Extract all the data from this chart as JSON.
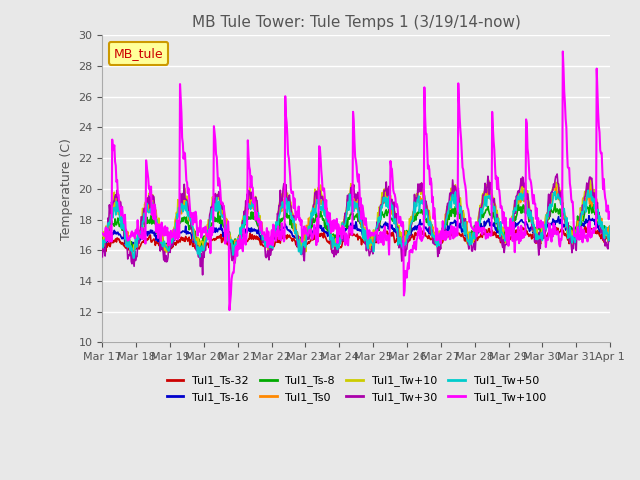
{
  "title": "MB Tule Tower: Tule Temps 1 (3/19/14-now)",
  "ylabel": "Temperature (C)",
  "ylim": [
    10,
    30
  ],
  "yticks": [
    10,
    12,
    14,
    16,
    18,
    20,
    22,
    24,
    26,
    28,
    30
  ],
  "plot_bg": "#e8e8e8",
  "legend_label": "MB_tule",
  "legend_box_color": "#ffff99",
  "legend_box_edge": "#cc9900",
  "series": [
    {
      "label": "Tul1_Ts-32",
      "color": "#cc0000",
      "lw": 1.2
    },
    {
      "label": "Tul1_Ts-16",
      "color": "#0000cc",
      "lw": 1.2
    },
    {
      "label": "Tul1_Ts-8",
      "color": "#00aa00",
      "lw": 1.2
    },
    {
      "label": "Tul1_Ts0",
      "color": "#ff8800",
      "lw": 1.2
    },
    {
      "label": "Tul1_Tw+10",
      "color": "#cccc00",
      "lw": 1.2
    },
    {
      "label": "Tul1_Tw+30",
      "color": "#aa00aa",
      "lw": 1.2
    },
    {
      "label": "Tul1_Tw+50",
      "color": "#00cccc",
      "lw": 1.2
    },
    {
      "label": "Tul1_Tw+100",
      "color": "#ff00ff",
      "lw": 1.5
    }
  ],
  "x_tick_positions": [
    0,
    1,
    2,
    3,
    4,
    5,
    6,
    7,
    8,
    9,
    10,
    11,
    12,
    13,
    14,
    15
  ],
  "x_tick_labels": [
    "Mar 17",
    "Mar 18",
    "Mar 19",
    "Mar 20",
    "Mar 21",
    "Mar 22",
    "Mar 23",
    "Mar 24",
    "Mar 25",
    "Mar 26",
    "Mar 27",
    "Mar 28",
    "Mar 29",
    "Mar 30",
    "Mar 31",
    "Apr 1"
  ]
}
